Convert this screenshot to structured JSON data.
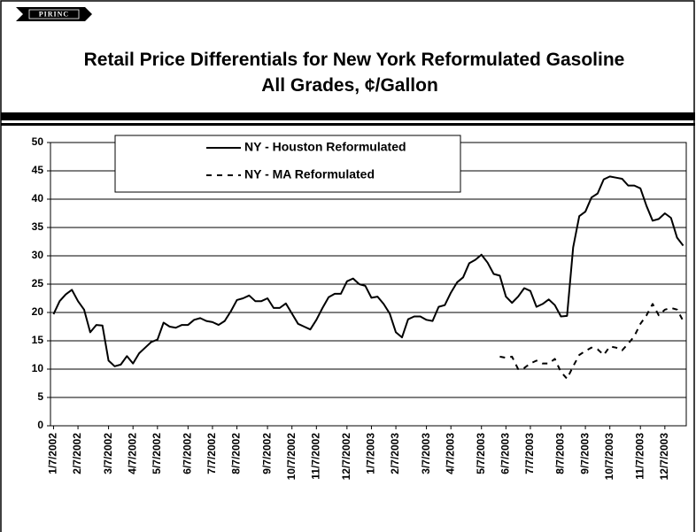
{
  "logo": "PIRINC",
  "chart_data": {
    "type": "line",
    "title": [
      "Retail Price Differentials for New York Reformulated Gasoline",
      "All Grades, ¢/Gallon"
    ],
    "categories": [
      "1/7/2002",
      null,
      null,
      null,
      "2/7/2002",
      null,
      null,
      null,
      null,
      "3/7/2002",
      null,
      null,
      null,
      "4/7/2002",
      null,
      null,
      null,
      "5/7/2002",
      null,
      null,
      null,
      null,
      "6/7/2002",
      null,
      null,
      null,
      "7/7/2002",
      null,
      null,
      null,
      "8/7/2002",
      null,
      null,
      null,
      null,
      "9/7/2002",
      null,
      null,
      null,
      "10/7/2002",
      null,
      null,
      null,
      "11/7/2002",
      null,
      null,
      null,
      null,
      "12/7/2002",
      null,
      null,
      null,
      "1/7/2003",
      null,
      null,
      null,
      "2/7/2003",
      null,
      null,
      null,
      null,
      "3/7/2003",
      null,
      null,
      null,
      "4/7/2003",
      null,
      null,
      null,
      null,
      "5/7/2003",
      null,
      null,
      null,
      "6/7/2003",
      null,
      null,
      null,
      "7/7/2003",
      null,
      null,
      null,
      null,
      "8/7/2003",
      null,
      null,
      null,
      "9/7/2003",
      null,
      null,
      null,
      "10/7/2003",
      null,
      null,
      null,
      null,
      "11/7/2003",
      null,
      null,
      null,
      "12/7/2003",
      null,
      null,
      null
    ],
    "series": [
      {
        "name": "NY - Houston Reformulated",
        "color": "#000000",
        "line_style": "solid",
        "values": [
          19.7,
          22,
          23.2,
          24,
          22,
          20.5,
          16.5,
          17.8,
          17.7,
          11.5,
          10.5,
          10.8,
          12.3,
          11,
          12.8,
          13.8,
          14.8,
          15.2,
          18.2,
          17.5,
          17.3,
          17.8,
          17.8,
          18.7,
          19,
          18.5,
          18.3,
          17.8,
          18.5,
          20.2,
          22.2,
          22.5,
          23,
          22,
          22,
          22.5,
          20.8,
          20.8,
          21.6,
          19.8,
          18,
          17.5,
          17,
          18.7,
          20.8,
          22.7,
          23.3,
          23.3,
          25.5,
          26,
          25,
          24.7,
          22.6,
          22.8,
          21.5,
          19.8,
          16.5,
          15.6,
          18.8,
          19.3,
          19.3,
          18.7,
          18.5,
          21,
          21.3,
          23.5,
          25.3,
          26.2,
          28.7,
          29.3,
          30.2,
          28.8,
          26.8,
          26.5,
          22.8,
          21.7,
          22.8,
          24.3,
          23.8,
          21,
          21.5,
          22.3,
          21.3,
          19.3,
          19.4,
          31.5,
          37,
          37.8,
          40.3,
          41,
          43.5,
          44,
          43.8,
          43.6,
          42.4,
          42.4,
          41.9,
          38.8,
          36.2,
          36.5,
          37.5,
          36.7,
          33.2,
          31.8
        ]
      },
      {
        "name": "NY - MA Reformulated",
        "color": "#000000",
        "line_style": "dashed",
        "values": [
          null,
          null,
          null,
          null,
          null,
          null,
          null,
          null,
          null,
          null,
          null,
          null,
          null,
          null,
          null,
          null,
          null,
          null,
          null,
          null,
          null,
          null,
          null,
          null,
          null,
          null,
          null,
          null,
          null,
          null,
          null,
          null,
          null,
          null,
          null,
          null,
          null,
          null,
          null,
          null,
          null,
          null,
          null,
          null,
          null,
          null,
          null,
          null,
          null,
          null,
          null,
          null,
          null,
          null,
          null,
          null,
          null,
          null,
          null,
          null,
          null,
          null,
          null,
          null,
          null,
          null,
          null,
          null,
          null,
          null,
          null,
          null,
          null,
          12.2,
          12,
          12.2,
          10,
          10.2,
          11,
          11.5,
          11,
          11,
          11.8,
          9.5,
          8.3,
          10.5,
          12.5,
          13.2,
          13.8,
          13.5,
          12.5,
          14,
          13.8,
          13.3,
          14.5,
          15.8,
          18,
          19.5,
          21.5,
          19.5,
          20.5,
          20.8,
          20.5,
          18.5
        ]
      }
    ],
    "ylim": [
      0,
      50
    ],
    "yticks": [
      0,
      5,
      10,
      15,
      20,
      25,
      30,
      35,
      40,
      45,
      50
    ],
    "grid": true,
    "legend": "top-left"
  }
}
